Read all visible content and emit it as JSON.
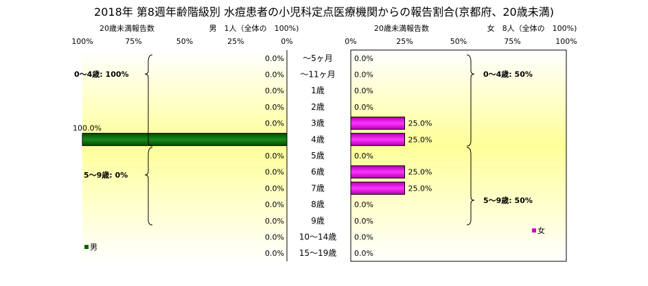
{
  "title": "2018年 第8週年齢階級別 水痘患者の小児科定点医療機関からの報告割合(京都府、20歳未満)",
  "chart_data": {
    "type": "bar",
    "orientation": "horizontal-butterfly",
    "categories": [
      "～5ヶ月",
      "～11ヶ月",
      "1歳",
      "2歳",
      "3歳",
      "4歳",
      "5歳",
      "6歳",
      "7歳",
      "8歳",
      "9歳",
      "10～14歳",
      "15～19歳"
    ],
    "male": {
      "name": "男",
      "header": "男　1人（全体の　100%)",
      "axis_label": "20歳未満報告数",
      "ticks": [
        "100%",
        "75%",
        "50%",
        "25%",
        "0%"
      ],
      "values": [
        0,
        0,
        0,
        0,
        0,
        100,
        0,
        0,
        0,
        0,
        0,
        0,
        0
      ],
      "labels": [
        "0.0%",
        "0.0%",
        "0.0%",
        "0.0%",
        "0.0%",
        "100.0%",
        "0.0%",
        "0.0%",
        "0.0%",
        "0.0%",
        "0.0%",
        "0.0%",
        "0.0%"
      ],
      "color": "#006400",
      "group_0_4": "0～4歳: 100%",
      "group_5_9": "5～9歳: 0%"
    },
    "female": {
      "name": "女",
      "header": "女　8人（全体の　100%)",
      "axis_label": "20歳未満報告数",
      "ticks": [
        "0%",
        "25%",
        "50%",
        "75%",
        "100%"
      ],
      "values": [
        0,
        0,
        0,
        0,
        25,
        25,
        0,
        25,
        25,
        0,
        0,
        0,
        0
      ],
      "labels": [
        "0.0%",
        "0.0%",
        "0.0%",
        "0.0%",
        "25.0%",
        "25.0%",
        "0.0%",
        "25.0%",
        "25.0%",
        "0.0%",
        "0.0%",
        "0.0%",
        "0.0%"
      ],
      "color": "#cc00cc",
      "group_0_4": "0～4歳: 50%",
      "group_5_9": "5～9歳: 50%"
    },
    "xlim": [
      0,
      100
    ]
  }
}
